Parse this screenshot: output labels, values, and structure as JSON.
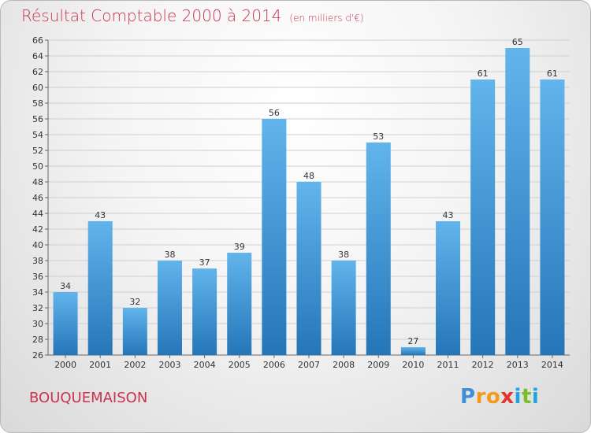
{
  "title": "Résultat Comptable 2000 à 2014",
  "title_unit": "(en milliers d'€)",
  "commune": "BOUQUEMAISON",
  "logo": {
    "text": "Proxiti",
    "parts": [
      "P",
      "r",
      "o",
      "x",
      "i",
      "t",
      "i"
    ]
  },
  "colors": {
    "title": "#c8334e",
    "bar_top": "#62b4ec",
    "bar_bottom": "#2476b8",
    "grid": "#cfcfcf"
  },
  "chart_data": {
    "type": "bar",
    "title": "Résultat Comptable 2000 à 2014",
    "xlabel": "",
    "ylabel": "",
    "categories": [
      "2000",
      "2001",
      "2002",
      "2003",
      "2004",
      "2005",
      "2006",
      "2007",
      "2008",
      "2009",
      "2010",
      "2011",
      "2012",
      "2013",
      "2014"
    ],
    "values": [
      34,
      43,
      32,
      38,
      37,
      39,
      56,
      48,
      38,
      53,
      27,
      43,
      61,
      65,
      61
    ],
    "ylim": [
      26,
      66
    ],
    "yticks": [
      26,
      28,
      30,
      32,
      34,
      36,
      38,
      40,
      42,
      44,
      46,
      48,
      50,
      52,
      54,
      56,
      58,
      60,
      62,
      64,
      66
    ],
    "grid": true,
    "legend": "none"
  }
}
